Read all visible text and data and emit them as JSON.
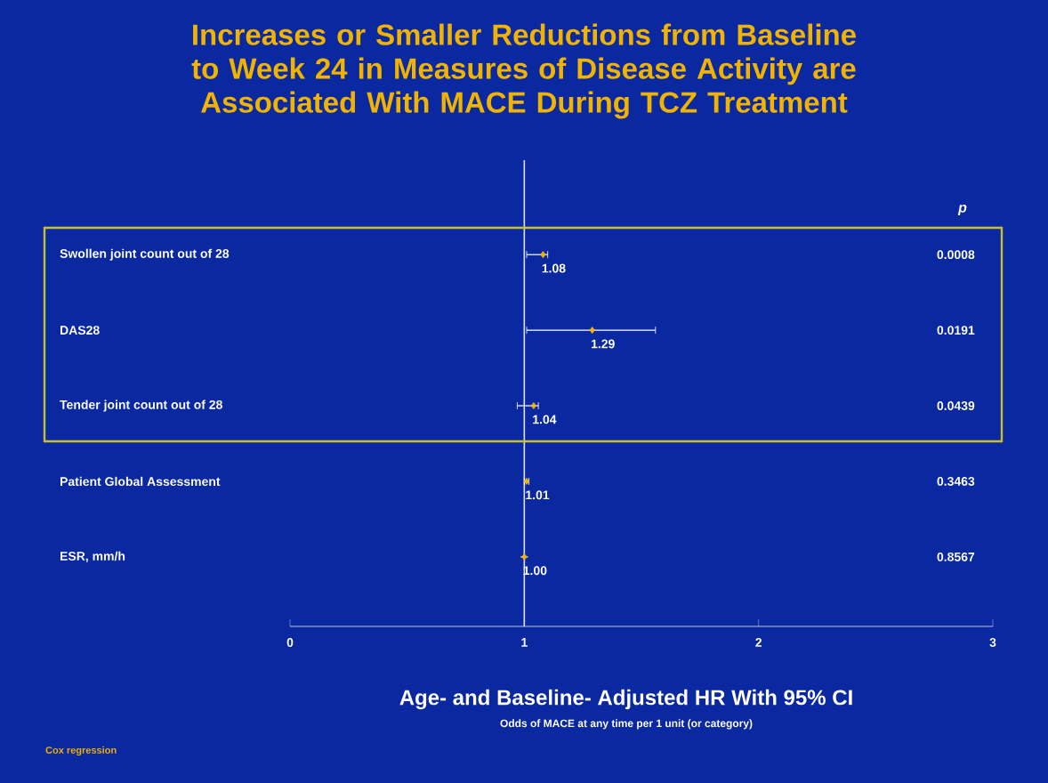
{
  "chart_data": {
    "type": "scatter",
    "orientation": "horizontal",
    "title": "Increases or Smaller Reductions from Baseline to Week 24 in Measures of Disease Activity are Associated With MACE During TCZ Treatment",
    "xlabel": "Age- and Baseline- Adjusted HR With 95% CI",
    "categories": [
      "Swollen joint count out of 28",
      "DAS28",
      "Tender joint count out of 28",
      "Patient Global Assessment",
      "ESR, mm/h"
    ],
    "values": [
      1.08,
      1.29,
      1.04,
      1.01,
      1.0
    ],
    "errors": [
      [
        1.01,
        1.1
      ],
      [
        1.01,
        1.56
      ],
      [
        0.97,
        1.06
      ],
      [
        1.0,
        1.02
      ],
      null
    ],
    "value_labels": [
      "1.08",
      "1.29",
      "1.04",
      "1.01",
      "1.00"
    ],
    "color": "#f0b400",
    "marker": "diamond",
    "xlim": [
      0,
      3
    ],
    "xticks": [
      0,
      1,
      2,
      3
    ],
    "ref_lines": [
      {
        "axis": "x",
        "value": 1,
        "color": "#e0e0e0"
      }
    ],
    "annotations": [
      "Odds of MACE at any time per 1 unit (or category)",
      "p",
      "0.0008",
      "0.0191",
      "0.0439",
      "0.3463",
      "0.8567",
      "Cox regression"
    ],
    "grid": false
  }
}
